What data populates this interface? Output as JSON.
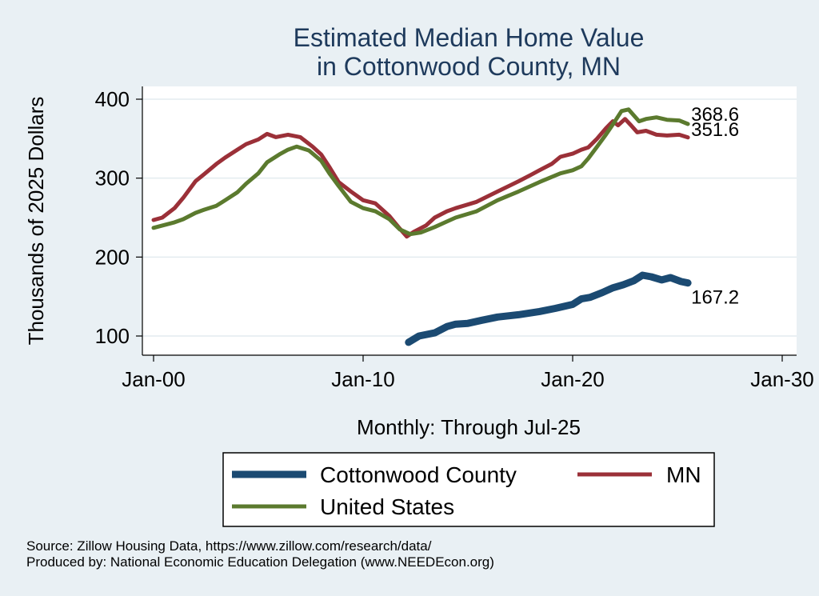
{
  "chart_data": {
    "type": "line",
    "title": [
      "Estimated Median Home Value",
      "in Cottonwood County, MN"
    ],
    "xlabel": "Monthly: Through Jul-25",
    "ylabel": "Thousands of 2025 Dollars",
    "x_ticks": [
      "Jan-00",
      "Jan-10",
      "Jan-20",
      "Jan-30"
    ],
    "y_ticks": [
      100,
      200,
      300,
      400
    ],
    "xlim": [
      "2000-01",
      "2030-01"
    ],
    "ylim": [
      80,
      420
    ],
    "grid": true,
    "legend_position": "bottom",
    "series": [
      {
        "name": "Cottonwood County",
        "color": "#1b4a72",
        "end_label": "167.2",
        "points": [
          [
            "2012-03",
            92
          ],
          [
            "2012-09",
            100
          ],
          [
            "2013-06",
            104
          ],
          [
            "2014-01",
            112
          ],
          [
            "2014-06",
            115
          ],
          [
            "2015-01",
            116
          ],
          [
            "2015-09",
            120
          ],
          [
            "2016-06",
            124
          ],
          [
            "2017-06",
            127
          ],
          [
            "2018-06",
            131
          ],
          [
            "2019-03",
            135
          ],
          [
            "2020-01",
            140
          ],
          [
            "2020-06",
            147
          ],
          [
            "2020-11",
            149
          ],
          [
            "2021-06",
            155
          ],
          [
            "2021-12",
            161
          ],
          [
            "2022-06",
            165
          ],
          [
            "2022-12",
            170
          ],
          [
            "2023-05",
            177
          ],
          [
            "2023-10",
            175
          ],
          [
            "2024-04",
            171
          ],
          [
            "2024-09",
            174
          ],
          [
            "2025-03",
            169
          ],
          [
            "2025-07",
            167.2
          ]
        ]
      },
      {
        "name": "MN",
        "color": "#9b3038",
        "end_label": "351.6",
        "points": [
          [
            "2000-01",
            247
          ],
          [
            "2000-06",
            250
          ],
          [
            "2001-01",
            262
          ],
          [
            "2001-06",
            275
          ],
          [
            "2002-01",
            296
          ],
          [
            "2002-06",
            305
          ],
          [
            "2003-01",
            318
          ],
          [
            "2003-06",
            326
          ],
          [
            "2004-01",
            336
          ],
          [
            "2004-06",
            343
          ],
          [
            "2005-01",
            349
          ],
          [
            "2005-06",
            356
          ],
          [
            "2005-11",
            352
          ],
          [
            "2006-06",
            355
          ],
          [
            "2007-01",
            352
          ],
          [
            "2007-08",
            340
          ],
          [
            "2008-01",
            330
          ],
          [
            "2008-06",
            313
          ],
          [
            "2008-11",
            295
          ],
          [
            "2009-06",
            283
          ],
          [
            "2010-01",
            272
          ],
          [
            "2010-08",
            268
          ],
          [
            "2011-04",
            252
          ],
          [
            "2011-10",
            236
          ],
          [
            "2012-02",
            226
          ],
          [
            "2012-06",
            232
          ],
          [
            "2013-01",
            240
          ],
          [
            "2013-06",
            250
          ],
          [
            "2014-01",
            258
          ],
          [
            "2014-06",
            262
          ],
          [
            "2015-06",
            270
          ],
          [
            "2016-06",
            283
          ],
          [
            "2017-06",
            296
          ],
          [
            "2018-01",
            304
          ],
          [
            "2018-06",
            310
          ],
          [
            "2019-01",
            318
          ],
          [
            "2019-06",
            327
          ],
          [
            "2020-01",
            331
          ],
          [
            "2020-06",
            336
          ],
          [
            "2020-10",
            339
          ],
          [
            "2021-03",
            350
          ],
          [
            "2021-08",
            363
          ],
          [
            "2021-12",
            372
          ],
          [
            "2022-03",
            367
          ],
          [
            "2022-07",
            375
          ],
          [
            "2022-10",
            368
          ],
          [
            "2023-02",
            358
          ],
          [
            "2023-07",
            360
          ],
          [
            "2024-01",
            355
          ],
          [
            "2024-07",
            354
          ],
          [
            "2025-02",
            355
          ],
          [
            "2025-07",
            351.6
          ]
        ]
      },
      {
        "name": "United States",
        "color": "#5b7a2e",
        "end_label": "368.6",
        "points": [
          [
            "2000-01",
            237
          ],
          [
            "2000-06",
            240
          ],
          [
            "2001-01",
            244
          ],
          [
            "2001-06",
            248
          ],
          [
            "2002-01",
            256
          ],
          [
            "2002-06",
            260
          ],
          [
            "2003-01",
            265
          ],
          [
            "2003-06",
            272
          ],
          [
            "2004-01",
            282
          ],
          [
            "2004-06",
            293
          ],
          [
            "2005-01",
            306
          ],
          [
            "2005-06",
            320
          ],
          [
            "2006-01",
            330
          ],
          [
            "2006-06",
            336
          ],
          [
            "2006-11",
            340
          ],
          [
            "2007-06",
            335
          ],
          [
            "2008-01",
            322
          ],
          [
            "2008-06",
            305
          ],
          [
            "2008-11",
            290
          ],
          [
            "2009-06",
            270
          ],
          [
            "2010-01",
            262
          ],
          [
            "2010-08",
            258
          ],
          [
            "2011-04",
            248
          ],
          [
            "2011-10",
            235
          ],
          [
            "2012-04",
            229
          ],
          [
            "2012-10",
            231
          ],
          [
            "2013-06",
            238
          ],
          [
            "2014-01",
            245
          ],
          [
            "2014-06",
            250
          ],
          [
            "2015-06",
            258
          ],
          [
            "2016-06",
            272
          ],
          [
            "2017-06",
            283
          ],
          [
            "2018-06",
            295
          ],
          [
            "2019-06",
            306
          ],
          [
            "2020-01",
            310
          ],
          [
            "2020-06",
            315
          ],
          [
            "2020-10",
            325
          ],
          [
            "2021-03",
            340
          ],
          [
            "2021-08",
            355
          ],
          [
            "2021-12",
            368
          ],
          [
            "2022-05",
            385
          ],
          [
            "2022-09",
            387
          ],
          [
            "2023-03",
            372
          ],
          [
            "2023-07",
            375
          ],
          [
            "2024-01",
            377
          ],
          [
            "2024-07",
            374
          ],
          [
            "2025-02",
            373
          ],
          [
            "2025-07",
            368.6
          ]
        ]
      }
    ]
  },
  "footer": {
    "source": "Source: Zillow Housing Data, https://www.zillow.com/research/data/",
    "produced": "Produced by: National Economic Education Delegation (www.NEEDEcon.org)"
  }
}
